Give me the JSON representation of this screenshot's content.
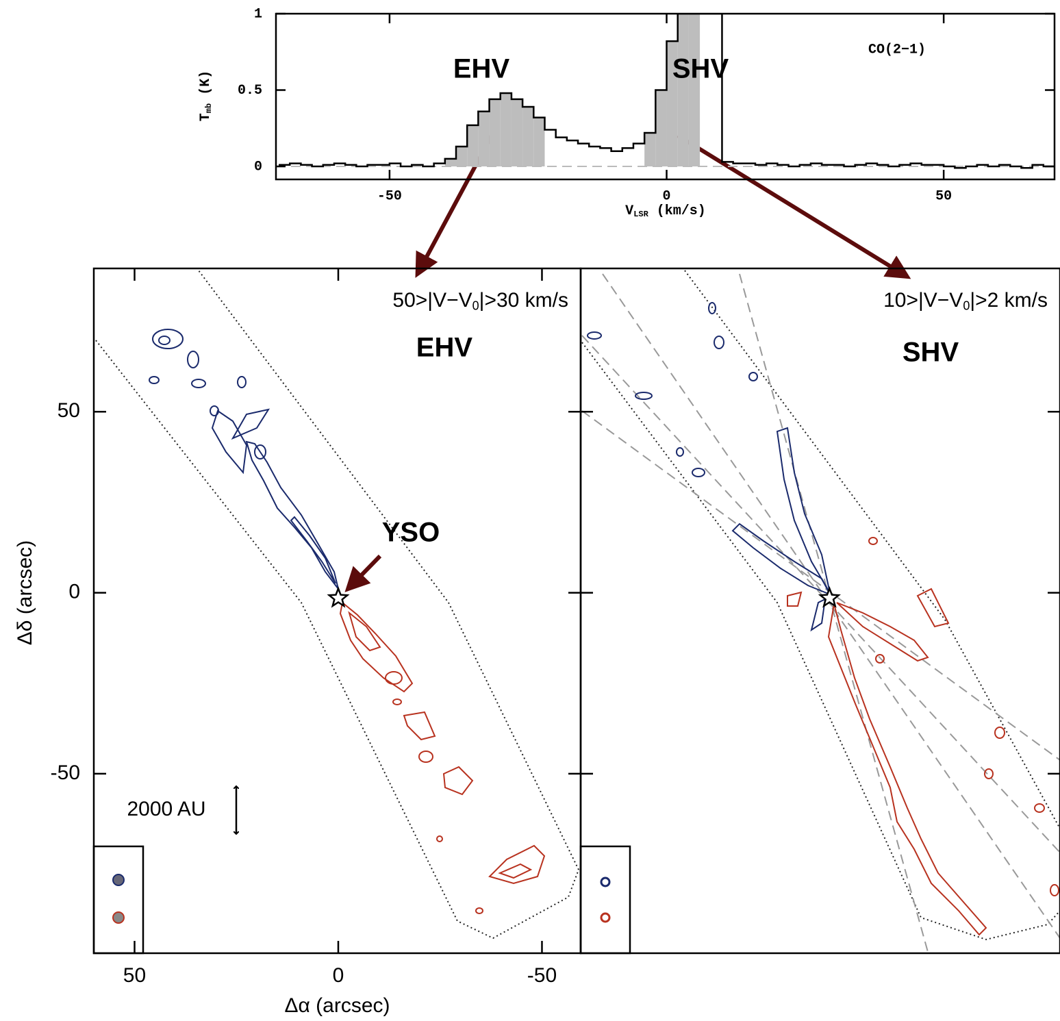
{
  "chart_data": [
    {
      "type": "step",
      "x_label": [
        "V",
        "LSR",
        " (km/s)"
      ],
      "y_label": [
        "T",
        "mb",
        " (K)"
      ],
      "annotations": [
        "EHV",
        "SHV",
        "CO(2−1)"
      ],
      "x": [
        -70,
        -68,
        -66,
        -64,
        -62,
        -60,
        -58,
        -56,
        -54,
        -52,
        -50,
        -48,
        -46,
        -44,
        -42,
        -40,
        -38,
        -36,
        -34,
        -32,
        -30,
        -28,
        -26,
        -24,
        -22,
        -20,
        -18,
        -16,
        -14,
        -12,
        -10,
        -8,
        -6,
        -4,
        -2,
        0,
        2,
        4,
        6,
        8,
        10,
        12,
        14,
        16,
        18,
        20,
        22,
        24,
        26,
        28,
        30,
        32,
        34,
        36,
        38,
        40,
        42,
        44,
        46,
        48,
        50,
        52,
        54,
        56,
        58,
        60,
        62,
        64,
        66,
        68
      ],
      "values": [
        0.01,
        0.02,
        0.01,
        0.0,
        0.01,
        0.02,
        0.01,
        0.0,
        0.01,
        0.01,
        0.02,
        0.0,
        0.01,
        0.0,
        0.02,
        0.05,
        0.13,
        0.27,
        0.36,
        0.44,
        0.48,
        0.44,
        0.39,
        0.32,
        0.24,
        0.19,
        0.17,
        0.15,
        0.13,
        0.12,
        0.1,
        0.12,
        0.15,
        0.22,
        0.5,
        0.82,
        1,
        1,
        1,
        1,
        0.03,
        0.02,
        0.02,
        0.01,
        0.02,
        0.01,
        0.0,
        0.01,
        0.02,
        0.01,
        0.01,
        0.0,
        0.01,
        0.02,
        0.01,
        0.0,
        0.01,
        0.02,
        0.01,
        0.01,
        0.0,
        -0.01,
        0.0,
        0.01,
        0.0,
        0.01,
        0.0,
        -0.01,
        0.01,
        0.0
      ],
      "shaded": [
        [
          -40,
          -22
        ],
        [
          -4,
          6
        ]
      ],
      "shade_color": "#bdbdbd",
      "color": "#000000",
      "xlim": [
        -70.5,
        70
      ],
      "ylim": [
        -0.085,
        1
      ],
      "xticks": [
        -50,
        0,
        50
      ],
      "yticks": [
        0,
        0.5,
        1
      ]
    },
    {
      "type": "map",
      "x_label": "Δα (arcsec)",
      "y_label": "Δδ (arcsec)",
      "velocity_range": [
        "50>|V−V",
        "0",
        "|>30 km/s"
      ],
      "component": "EHV",
      "source_label": "YSO",
      "scale_label": "2000 AU",
      "source": [
        0,
        -1.5
      ],
      "xlim": [
        60,
        -59.5
      ],
      "ylim": [
        -99.6,
        89.6
      ],
      "xticks": [
        50,
        0,
        -50
      ],
      "yticks": [
        50,
        0,
        -50
      ]
    },
    {
      "type": "map",
      "velocity_range": [
        "10>|V−V",
        "0",
        "|>2 km/s"
      ],
      "component": "SHV",
      "source": [
        0,
        -1.5
      ],
      "xlim": [
        61,
        -56.5
      ],
      "ylim": [
        -99.6,
        89.6
      ]
    }
  ]
}
